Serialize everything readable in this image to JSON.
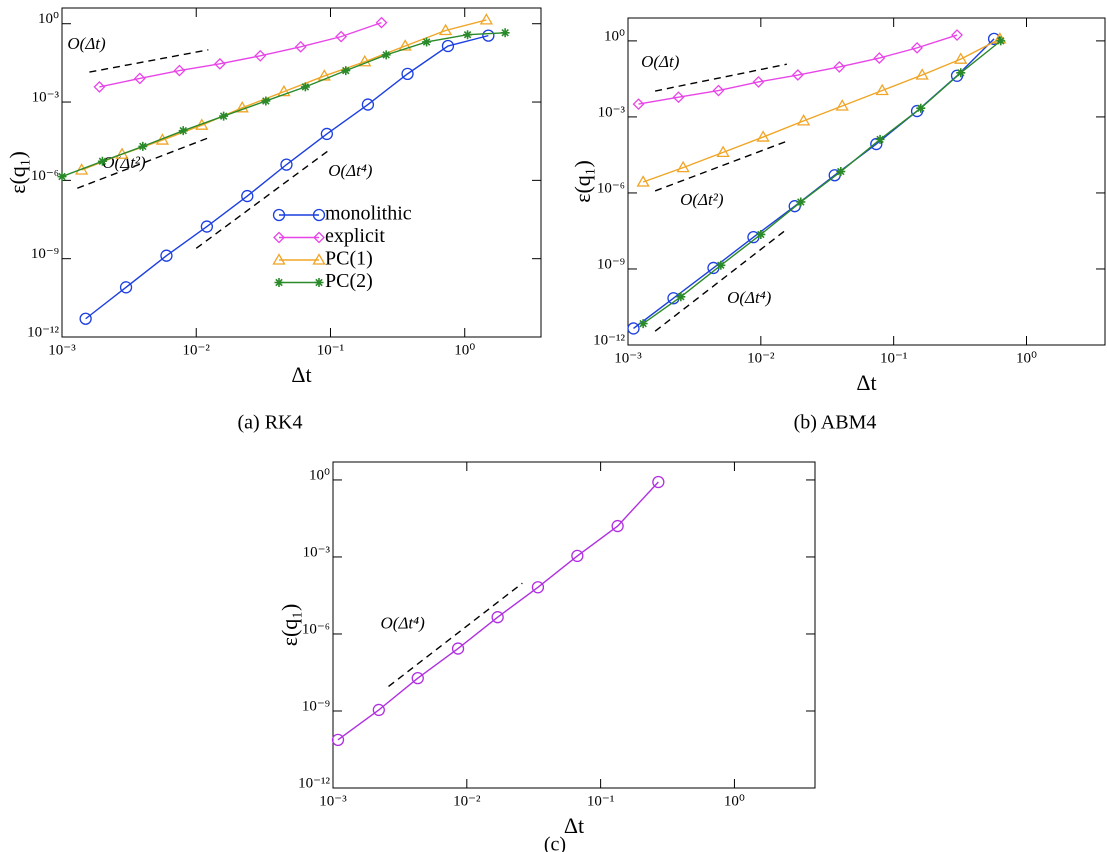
{
  "chart_data": [
    {
      "type": "line",
      "caption": "(a) RK4",
      "xlabel": "Δt",
      "ylabel": "ε(q₁)",
      "xscale": "log",
      "yscale": "log",
      "xlim": [
        0.001,
        3.7
      ],
      "ylim": [
        1e-12,
        4
      ],
      "xticks": [
        {
          "value": 0.001,
          "label": "10⁻³"
        },
        {
          "value": 0.01,
          "label": "10⁻²"
        },
        {
          "value": 0.1,
          "label": "10⁻¹"
        },
        {
          "value": 1,
          "label": "10⁰"
        }
      ],
      "yticks": [
        {
          "value": 1e-12,
          "label": "10⁻¹²"
        },
        {
          "value": 1e-09,
          "label": "10⁻⁹"
        },
        {
          "value": 1e-06,
          "label": "10⁻⁶"
        },
        {
          "value": 0.001,
          "label": "10⁻³"
        },
        {
          "value": 1,
          "label": "10⁰"
        }
      ],
      "legend": "lower right",
      "series": [
        {
          "name": "monolithic",
          "color": "#1c3fe0",
          "marker": "circle",
          "x": [
            0.0015,
            0.003,
            0.006,
            0.012,
            0.024,
            0.047,
            0.094,
            0.19,
            0.375,
            0.75,
            1.5
          ],
          "values": [
            5e-12,
            8e-11,
            1.3e-09,
            1.7e-08,
            2.5e-07,
            4e-06,
            6e-05,
            0.0008,
            0.012,
            0.14,
            0.35
          ]
        },
        {
          "name": "explicit",
          "color": "#e845e8",
          "marker": "diamond",
          "x": [
            0.0019,
            0.0038,
            0.0075,
            0.015,
            0.03,
            0.06,
            0.12,
            0.24
          ],
          "values": [
            0.0038,
            0.008,
            0.016,
            0.029,
            0.059,
            0.13,
            0.32,
            1.1
          ]
        },
        {
          "name": "PC(1)",
          "color": "#f0a526",
          "marker": "triangle",
          "x": [
            0.0014,
            0.0028,
            0.0056,
            0.011,
            0.022,
            0.045,
            0.09,
            0.18,
            0.36,
            0.72,
            1.45
          ],
          "values": [
            2.5e-06,
            1e-05,
            3.5e-05,
            0.00013,
            0.0006,
            0.0025,
            0.01,
            0.035,
            0.14,
            0.55,
            1.4
          ]
        },
        {
          "name": "PC(2)",
          "color": "#2a8a2a",
          "marker": "star",
          "x": [
            0.001,
            0.002,
            0.004,
            0.008,
            0.016,
            0.033,
            0.065,
            0.13,
            0.26,
            0.52,
            1.05,
            2.0
          ],
          "values": [
            1.4e-06,
            5.4e-06,
            2e-05,
            8e-05,
            0.00029,
            0.0011,
            0.0038,
            0.016,
            0.064,
            0.2,
            0.38,
            0.45
          ]
        }
      ],
      "guides": [
        {
          "label": "O(Δt)",
          "x": [
            0.0016,
            0.0123
          ],
          "y": [
            0.014,
            0.1
          ]
        },
        {
          "label": "O(Δt²)",
          "x": [
            0.0013,
            0.0127
          ],
          "y": [
            5e-07,
            4.5e-05
          ]
        },
        {
          "label": "O(Δt⁴)",
          "x": [
            0.01,
            0.097
          ],
          "y": [
            2.5e-09,
            1.4e-05
          ]
        }
      ]
    },
    {
      "type": "line",
      "caption": "(b) ABM4",
      "xlabel": "Δt",
      "ylabel": "ε(q₁)",
      "xscale": "log",
      "yscale": "log",
      "xlim": [
        0.001,
        3.9
      ],
      "ylim": [
        1e-12,
        8
      ],
      "xticks": [
        {
          "value": 0.001,
          "label": "10⁻³"
        },
        {
          "value": 0.01,
          "label": "10⁻²"
        },
        {
          "value": 0.1,
          "label": "10⁻¹"
        },
        {
          "value": 1,
          "label": "10⁰"
        }
      ],
      "yticks": [
        {
          "value": 1e-12,
          "label": "10⁻¹²"
        },
        {
          "value": 1e-09,
          "label": "10⁻⁹"
        },
        {
          "value": 1e-06,
          "label": "10⁻⁶"
        },
        {
          "value": 0.001,
          "label": "10⁻³"
        },
        {
          "value": 1,
          "label": "10⁰"
        }
      ],
      "series": [
        {
          "color": "#1c3fe0",
          "marker": "circle",
          "x": [
            0.0011,
            0.0022,
            0.0044,
            0.0088,
            0.018,
            0.036,
            0.074,
            0.15,
            0.3,
            0.57
          ],
          "values": [
            4.5e-12,
            7e-11,
            1.1e-09,
            1.8e-08,
            3e-07,
            5e-06,
            8.5e-05,
            0.0017,
            0.042,
            1.2
          ]
        },
        {
          "color": "#e845e8",
          "marker": "diamond",
          "x": [
            0.0012,
            0.0024,
            0.0048,
            0.0096,
            0.019,
            0.039,
            0.078,
            0.15,
            0.3
          ],
          "values": [
            0.0032,
            0.006,
            0.011,
            0.024,
            0.045,
            0.094,
            0.21,
            0.53,
            1.7
          ]
        },
        {
          "color": "#f0a526",
          "marker": "triangle",
          "x": [
            0.0013,
            0.0026,
            0.0052,
            0.0104,
            0.021,
            0.041,
            0.082,
            0.164,
            0.32,
            0.63
          ],
          "values": [
            2.7e-06,
            1e-05,
            4e-05,
            0.00016,
            0.0007,
            0.0027,
            0.011,
            0.045,
            0.19,
            1.2
          ]
        },
        {
          "color": "#2a8a2a",
          "marker": "star",
          "x": [
            0.0013,
            0.0025,
            0.005,
            0.01,
            0.02,
            0.04,
            0.079,
            0.16,
            0.32,
            0.64
          ],
          "values": [
            7e-12,
            8e-11,
            1.4e-09,
            2.3e-08,
            4.4e-07,
            7e-06,
            0.00013,
            0.0022,
            0.055,
            1
          ]
        }
      ],
      "guides": [
        {
          "label": "O(Δt)",
          "x": [
            0.0016,
            0.0157
          ],
          "y": [
            0.0105,
            0.12
          ]
        },
        {
          "label": "O(Δt²)",
          "x": [
            0.0016,
            0.0157
          ],
          "y": [
            1.2e-06,
            0.00011
          ]
        },
        {
          "label": "O(Δt⁴)",
          "x": [
            0.0016,
            0.0157
          ],
          "y": [
            3.5e-12,
            3.7e-08
          ]
        }
      ]
    },
    {
      "type": "line",
      "caption": "(c)",
      "xlabel": "Δt",
      "ylabel": "ε(q₁)",
      "xscale": "log",
      "yscale": "log",
      "xlim": [
        0.001,
        4
      ],
      "ylim": [
        1e-12,
        5
      ],
      "xticks": [
        {
          "value": 0.001,
          "label": "10⁻³"
        },
        {
          "value": 0.01,
          "label": "10⁻²"
        },
        {
          "value": 0.1,
          "label": "10⁻¹"
        },
        {
          "value": 1,
          "label": "10⁰"
        }
      ],
      "yticks": [
        {
          "value": 1e-12,
          "label": "10⁻¹²"
        },
        {
          "value": 1e-09,
          "label": "10⁻⁹"
        },
        {
          "value": 1e-06,
          "label": "10⁻⁶"
        },
        {
          "value": 0.001,
          "label": "10⁻³"
        },
        {
          "value": 1,
          "label": "10⁰"
        }
      ],
      "series": [
        {
          "color": "#b030e0",
          "marker": "circle",
          "x": [
            0.00109,
            0.0022,
            0.0043,
            0.0086,
            0.017,
            0.034,
            0.067,
            0.134,
            0.27
          ],
          "values": [
            7.5e-11,
            1.1e-09,
            1.9e-08,
            2.7e-07,
            4.5e-06,
            6.6e-05,
            0.0011,
            0.016,
            0.83
          ]
        }
      ],
      "guides": [
        {
          "label": "O(Δt⁴)",
          "x": [
            0.0026,
            0.026
          ],
          "y": [
            9e-09,
            9.5e-05
          ]
        }
      ]
    }
  ]
}
